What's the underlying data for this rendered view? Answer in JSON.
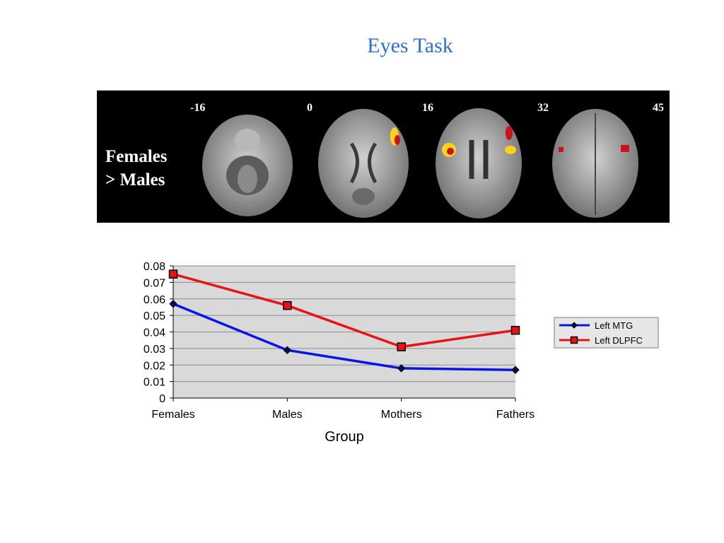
{
  "slide": {
    "title": "Eyes Task"
  },
  "brain_panel": {
    "contrast_line1": "Females",
    "contrast_line2": "> Males",
    "slices": [
      {
        "label": "-16"
      },
      {
        "label": "0"
      },
      {
        "label": "16"
      },
      {
        "label": "32"
      },
      {
        "label": "45"
      }
    ],
    "colors": {
      "background": "#000000",
      "activation_hot": "#ffd21a",
      "activation_warm": "#c8141e"
    }
  },
  "chart_data": {
    "type": "line",
    "categories": [
      "Females",
      "Males",
      "Mothers",
      "Fathers"
    ],
    "series": [
      {
        "name": "Left MTG",
        "values": [
          0.057,
          0.029,
          0.018,
          0.017
        ],
        "color": "#0a14e6",
        "marker": "diamond"
      },
      {
        "name": "Left DLPFC",
        "values": [
          0.075,
          0.056,
          0.031,
          0.041
        ],
        "color": "#e61414",
        "marker": "square"
      }
    ],
    "xlabel": "Group",
    "ylabel": "",
    "ylim": [
      0,
      0.08
    ],
    "yticks": [
      "0",
      "0.01",
      "0.02",
      "0.03",
      "0.04",
      "0.05",
      "0.06",
      "0.07",
      "0.08"
    ],
    "grid": true,
    "plot_background": "#d9d9d9",
    "legend": "right"
  }
}
